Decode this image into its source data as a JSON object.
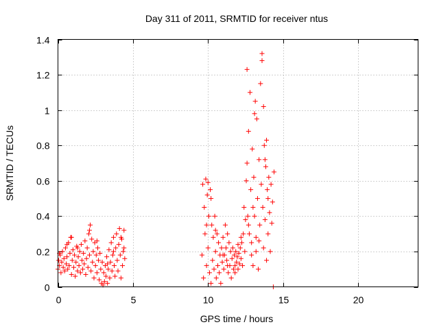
{
  "chart_data": {
    "type": "scatter",
    "title": "Day 311 of 2011, SRMTID for receiver ntus",
    "xlabel": "GPS time / hours",
    "ylabel": "SRMTID / TECUs",
    "xlim": [
      0,
      24
    ],
    "ylim": [
      0,
      1.4
    ],
    "xticks": [
      0,
      5,
      10,
      15,
      20
    ],
    "xtick_labels": [
      "0",
      "5",
      "10",
      "15",
      "20"
    ],
    "yticks": [
      0,
      0.2,
      0.4,
      0.6,
      0.8,
      1,
      1.2,
      1.4
    ],
    "ytick_labels": [
      "0",
      "0.2",
      "0.4",
      "0.6",
      "0.8",
      "1",
      "1.2",
      "1.4"
    ],
    "grid": true,
    "marker": "plus",
    "series": [
      {
        "name": "SRMTID",
        "color": "#ff0000",
        "points": [
          [
            0.0,
            0.1
          ],
          [
            0.05,
            0.15
          ],
          [
            0.1,
            0.12
          ],
          [
            0.15,
            0.18
          ],
          [
            0.2,
            0.08
          ],
          [
            0.25,
            0.14
          ],
          [
            0.3,
            0.2
          ],
          [
            0.35,
            0.11
          ],
          [
            0.4,
            0.16
          ],
          [
            0.45,
            0.09
          ],
          [
            0.5,
            0.22
          ],
          [
            0.55,
            0.13
          ],
          [
            0.6,
            0.17
          ],
          [
            0.65,
            0.1
          ],
          [
            0.7,
            0.25
          ],
          [
            0.75,
            0.12
          ],
          [
            0.8,
            0.19
          ],
          [
            0.85,
            0.28
          ],
          [
            0.9,
            0.07
          ],
          [
            0.95,
            0.15
          ],
          [
            1.0,
            0.21
          ],
          [
            1.05,
            0.11
          ],
          [
            1.1,
            0.18
          ],
          [
            1.15,
            0.06
          ],
          [
            1.2,
            0.14
          ],
          [
            1.25,
            0.23
          ],
          [
            1.3,
            0.09
          ],
          [
            1.35,
            0.17
          ],
          [
            1.4,
            0.12
          ],
          [
            1.45,
            0.2
          ],
          [
            1.5,
            0.08
          ],
          [
            1.55,
            0.24
          ],
          [
            1.6,
            0.15
          ],
          [
            1.65,
            0.1
          ],
          [
            1.7,
            0.19
          ],
          [
            1.75,
            0.13
          ],
          [
            1.8,
            0.26
          ],
          [
            1.85,
            0.07
          ],
          [
            1.9,
            0.16
          ],
          [
            1.95,
            0.22
          ],
          [
            2.0,
            0.11
          ],
          [
            2.05,
            0.3
          ],
          [
            2.1,
            0.18
          ],
          [
            2.15,
            0.35
          ],
          [
            2.2,
            0.09
          ],
          [
            2.25,
            0.27
          ],
          [
            2.3,
            0.14
          ],
          [
            2.35,
            0.2
          ],
          [
            2.4,
            0.05
          ],
          [
            2.45,
            0.25
          ],
          [
            2.5,
            0.12
          ],
          [
            2.55,
            0.18
          ],
          [
            2.6,
            0.08
          ],
          [
            2.65,
            0.22
          ],
          [
            2.7,
            0.15
          ],
          [
            2.75,
            0.04
          ],
          [
            2.8,
            0.19
          ],
          [
            2.85,
            0.1
          ],
          [
            2.9,
            0.02
          ],
          [
            2.95,
            0.14
          ],
          [
            3.0,
            0.01
          ],
          [
            3.05,
            0.08
          ],
          [
            3.1,
            0.03
          ],
          [
            3.15,
            0.12
          ],
          [
            3.2,
            0.06
          ],
          [
            3.25,
            0.17
          ],
          [
            3.3,
            0.02
          ],
          [
            3.35,
            0.1
          ],
          [
            3.4,
            0.21
          ],
          [
            3.45,
            0.05
          ],
          [
            3.5,
            0.14
          ],
          [
            3.55,
            0.25
          ],
          [
            3.6,
            0.09
          ],
          [
            3.65,
            0.18
          ],
          [
            3.7,
            0.28
          ],
          [
            3.75,
            0.12
          ],
          [
            3.8,
            0.06
          ],
          [
            3.85,
            0.22
          ],
          [
            3.9,
            0.3
          ],
          [
            3.95,
            0.15
          ],
          [
            4.0,
            0.09
          ],
          [
            4.05,
            0.24
          ],
          [
            4.1,
            0.33
          ],
          [
            4.15,
            0.18
          ],
          [
            4.2,
            0.05
          ],
          [
            4.25,
            0.27
          ],
          [
            4.3,
            0.12
          ],
          [
            4.35,
            0.2
          ],
          [
            4.4,
            0.32
          ],
          [
            4.45,
            0.16
          ],
          [
            0.1,
            0.19
          ],
          [
            0.6,
            0.24
          ],
          [
            0.9,
            0.28
          ],
          [
            1.3,
            0.22
          ],
          [
            2.1,
            0.32
          ],
          [
            2.6,
            0.26
          ],
          [
            3.3,
            0.13
          ],
          [
            3.7,
            0.2
          ],
          [
            4.2,
            0.28
          ],
          [
            4.4,
            0.22
          ],
          [
            9.6,
            0.18
          ],
          [
            9.65,
            0.58
          ],
          [
            9.7,
            0.05
          ],
          [
            9.75,
            0.45
          ],
          [
            9.8,
            0.3
          ],
          [
            9.85,
            0.61
          ],
          [
            9.9,
            0.12
          ],
          [
            9.95,
            0.52
          ],
          [
            10.0,
            0.22
          ],
          [
            10.05,
            0.4
          ],
          [
            10.1,
            0.08
          ],
          [
            10.15,
            0.55
          ],
          [
            10.2,
            0.02
          ],
          [
            10.25,
            0.35
          ],
          [
            10.3,
            0.15
          ],
          [
            10.35,
            0.28
          ],
          [
            10.4,
            0.1
          ],
          [
            10.45,
            0.4
          ],
          [
            10.5,
            0.2
          ],
          [
            10.55,
            0.05
          ],
          [
            10.6,
            0.3
          ],
          [
            10.65,
            0.12
          ],
          [
            10.7,
            0.25
          ],
          [
            10.75,
            0.08
          ],
          [
            10.8,
            0.18
          ],
          [
            10.85,
            0.02
          ],
          [
            10.9,
            0.22
          ],
          [
            10.95,
            0.14
          ],
          [
            11.0,
            0.28
          ],
          [
            11.05,
            0.1
          ],
          [
            11.1,
            0.18
          ],
          [
            11.15,
            0.35
          ],
          [
            11.2,
            0.22
          ],
          [
            11.25,
            0.15
          ],
          [
            11.3,
            0.3
          ],
          [
            11.35,
            0.08
          ],
          [
            11.4,
            0.25
          ],
          [
            11.45,
            0.12
          ],
          [
            11.5,
            0.2
          ],
          [
            11.55,
            0.05
          ],
          [
            11.6,
            0.16
          ],
          [
            11.65,
            0.22
          ],
          [
            11.7,
            0.1
          ],
          [
            11.75,
            0.18
          ],
          [
            11.8,
            0.12
          ],
          [
            11.85,
            0.2
          ],
          [
            11.9,
            0.14
          ],
          [
            11.95,
            0.17
          ],
          [
            12.0,
            0.1
          ],
          [
            12.05,
            0.19
          ],
          [
            12.1,
            0.13
          ],
          [
            12.15,
            0.22
          ],
          [
            12.2,
            0.16
          ],
          [
            12.25,
            0.25
          ],
          [
            12.3,
            0.12
          ],
          [
            12.35,
            0.3
          ],
          [
            12.4,
            0.45
          ],
          [
            12.45,
            0.2
          ],
          [
            12.5,
            0.38
          ],
          [
            12.55,
            0.6
          ],
          [
            12.6,
            1.23
          ],
          [
            12.65,
            0.4
          ],
          [
            12.7,
            0.88
          ],
          [
            12.75,
            0.3
          ],
          [
            12.8,
            1.1
          ],
          [
            12.85,
            0.55
          ],
          [
            12.9,
            0.25
          ],
          [
            12.95,
            0.78
          ],
          [
            13.0,
            0.12
          ],
          [
            13.05,
            0.62
          ],
          [
            13.1,
            0.4
          ],
          [
            13.15,
            1.05
          ],
          [
            13.2,
            0.2
          ],
          [
            13.25,
            0.95
          ],
          [
            13.3,
            0.5
          ],
          [
            13.35,
            0.1
          ],
          [
            13.4,
            0.72
          ],
          [
            13.45,
            0.35
          ],
          [
            13.5,
            1.15
          ],
          [
            13.55,
            0.58
          ],
          [
            13.6,
            1.32
          ],
          [
            13.65,
            0.45
          ],
          [
            13.7,
            0.22
          ],
          [
            13.75,
            0.8
          ],
          [
            13.8,
            0.38
          ],
          [
            13.85,
            0.68
          ],
          [
            13.9,
            0.15
          ],
          [
            13.95,
            0.55
          ],
          [
            14.0,
            0.3
          ],
          [
            14.05,
            0.62
          ],
          [
            14.1,
            0.42
          ],
          [
            14.15,
            0.2
          ],
          [
            14.2,
            0.58
          ],
          [
            14.25,
            0.36
          ],
          [
            14.3,
            0.48
          ],
          [
            14.35,
            0.0
          ],
          [
            14.4,
            0.65
          ],
          [
            13.2,
            0.28
          ],
          [
            13.6,
            1.28
          ],
          [
            13.9,
            0.83
          ],
          [
            12.6,
            0.7
          ],
          [
            12.9,
            0.18
          ],
          [
            13.1,
            0.98
          ],
          [
            13.4,
            0.26
          ],
          [
            13.7,
            1.02
          ],
          [
            12.7,
            0.35
          ],
          [
            13.0,
            0.45
          ],
          [
            13.8,
            0.72
          ],
          [
            14.0,
            0.5
          ],
          [
            10.2,
            0.5
          ],
          [
            10.0,
            0.59
          ],
          [
            9.9,
            0.35
          ],
          [
            10.5,
            0.32
          ],
          [
            11.0,
            0.18
          ],
          [
            11.3,
            0.12
          ],
          [
            12.2,
            0.28
          ],
          [
            12.0,
            0.24
          ],
          [
            11.8,
            0.08
          ]
        ]
      }
    ]
  }
}
